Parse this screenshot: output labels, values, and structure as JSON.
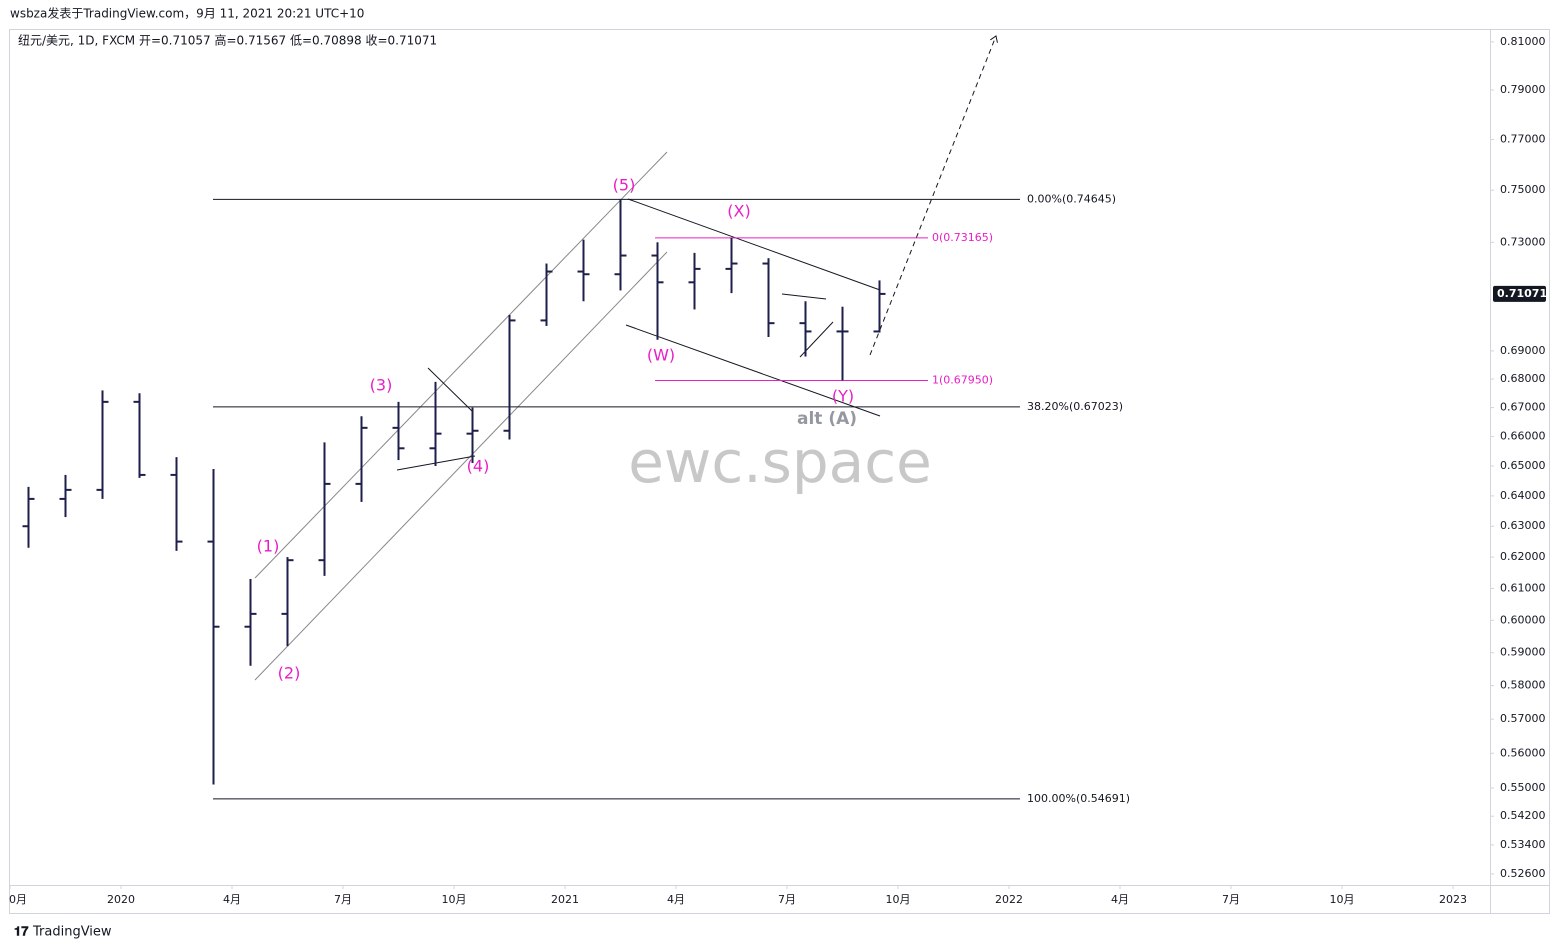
{
  "byline": "wsbza发表于TradingView.com，9月 11, 2021 20:21 UTC+10",
  "brand": "TradingView",
  "watermark": "ewc.space",
  "chart_data": {
    "type": "ohlc",
    "title": "纽元/美元, 1D, FXCM  开=0.71057  高=0.71567  低=0.70898  收=0.71071",
    "log_scale": true,
    "color": "#1c1f4a",
    "x": [
      "2019-10",
      "2019-11",
      "2019-12",
      "2020-01",
      "2020-02",
      "2020-03",
      "2020-04",
      "2020-05",
      "2020-06",
      "2020-07",
      "2020-08",
      "2020-09",
      "2020-10",
      "2020-11",
      "2020-12",
      "2021-01",
      "2021-02",
      "2021-03",
      "2021-04",
      "2021-05",
      "2021-06",
      "2021-07",
      "2021-08",
      "2021-09"
    ],
    "open": [
      0.63,
      0.639,
      0.642,
      0.672,
      0.647,
      0.625,
      0.598,
      0.602,
      0.619,
      0.644,
      0.663,
      0.656,
      0.661,
      0.662,
      0.701,
      0.719,
      0.718,
      0.725,
      0.715,
      0.72,
      0.722,
      0.7,
      0.697,
      0.697
    ],
    "high": [
      0.643,
      0.647,
      0.676,
      0.675,
      0.653,
      0.649,
      0.613,
      0.62,
      0.658,
      0.667,
      0.672,
      0.679,
      0.67,
      0.703,
      0.722,
      0.731,
      0.7465,
      0.73,
      0.726,
      0.7317,
      0.724,
      0.708,
      0.706,
      0.7157
    ],
    "low": [
      0.623,
      0.633,
      0.639,
      0.646,
      0.622,
      0.551,
      0.586,
      0.592,
      0.614,
      0.638,
      0.652,
      0.65,
      0.651,
      0.659,
      0.699,
      0.708,
      0.712,
      0.694,
      0.705,
      0.711,
      0.695,
      0.688,
      0.6795,
      0.6966
    ],
    "close": [
      0.639,
      0.642,
      0.672,
      0.647,
      0.625,
      0.598,
      0.602,
      0.619,
      0.644,
      0.663,
      0.656,
      0.661,
      0.662,
      0.701,
      0.719,
      0.718,
      0.725,
      0.715,
      0.72,
      0.722,
      0.7,
      0.697,
      0.697,
      0.71071
    ],
    "last_price": 0.71071,
    "xlim": [
      "2019-10",
      "2023-02"
    ],
    "xticks": [
      {
        "value": "2019-10",
        "label": "0月"
      },
      {
        "value": "2020-01",
        "label": "2020"
      },
      {
        "value": "2020-04",
        "label": "4月"
      },
      {
        "value": "2020-07",
        "label": "7月"
      },
      {
        "value": "2020-10",
        "label": "10月"
      },
      {
        "value": "2021-01",
        "label": "2021"
      },
      {
        "value": "2021-04",
        "label": "4月"
      },
      {
        "value": "2021-07",
        "label": "7月"
      },
      {
        "value": "2021-10",
        "label": "10月"
      },
      {
        "value": "2022-01",
        "label": "2022"
      },
      {
        "value": "2022-04",
        "label": "4月"
      },
      {
        "value": "2022-07",
        "label": "7月"
      },
      {
        "value": "2022-10",
        "label": "10月"
      },
      {
        "value": "2023-01",
        "label": "2023"
      }
    ],
    "ylim": [
      0.523,
      0.815
    ],
    "yticks": [
      {
        "value": 0.81,
        "label": "0.81000"
      },
      {
        "value": 0.79,
        "label": "0.79000"
      },
      {
        "value": 0.77,
        "label": "0.77000"
      },
      {
        "value": 0.75,
        "label": "0.75000"
      },
      {
        "value": 0.73,
        "label": "0.73000"
      },
      {
        "value": 0.69,
        "label": "0.69000"
      },
      {
        "value": 0.68,
        "label": "0.68000"
      },
      {
        "value": 0.67,
        "label": "0.67000"
      },
      {
        "value": 0.66,
        "label": "0.66000"
      },
      {
        "value": 0.65,
        "label": "0.65000"
      },
      {
        "value": 0.64,
        "label": "0.64000"
      },
      {
        "value": 0.63,
        "label": "0.63000"
      },
      {
        "value": 0.62,
        "label": "0.62000"
      },
      {
        "value": 0.61,
        "label": "0.61000"
      },
      {
        "value": 0.6,
        "label": "0.60000"
      },
      {
        "value": 0.59,
        "label": "0.59000"
      },
      {
        "value": 0.58,
        "label": "0.58000"
      },
      {
        "value": 0.57,
        "label": "0.57000"
      },
      {
        "value": 0.56,
        "label": "0.56000"
      },
      {
        "value": 0.55,
        "label": "0.55000"
      },
      {
        "value": 0.542,
        "label": "0.54200"
      },
      {
        "value": 0.534,
        "label": "0.53400"
      },
      {
        "value": 0.526,
        "label": "0.52600"
      }
    ],
    "fib_levels": [
      {
        "value": 0.74645,
        "label": "0.00%(0.74645)",
        "color": "#131722"
      },
      {
        "value": 0.67023,
        "label": "38.20%(0.67023)",
        "color": "#131722"
      },
      {
        "value": 0.54691,
        "label": "100.00%(0.54691)",
        "color": "#131722"
      },
      {
        "value": 0.73165,
        "label": "0(0.73165)",
        "color": "#e91ec8"
      },
      {
        "value": 0.6795,
        "label": "1(0.67950)",
        "color": "#e91ec8"
      }
    ],
    "annotations": [
      "(1)",
      "(2)",
      "(3)",
      "(4)",
      "(5)",
      "(W)",
      "(X)",
      "(Y)",
      "alt (A)"
    ]
  }
}
